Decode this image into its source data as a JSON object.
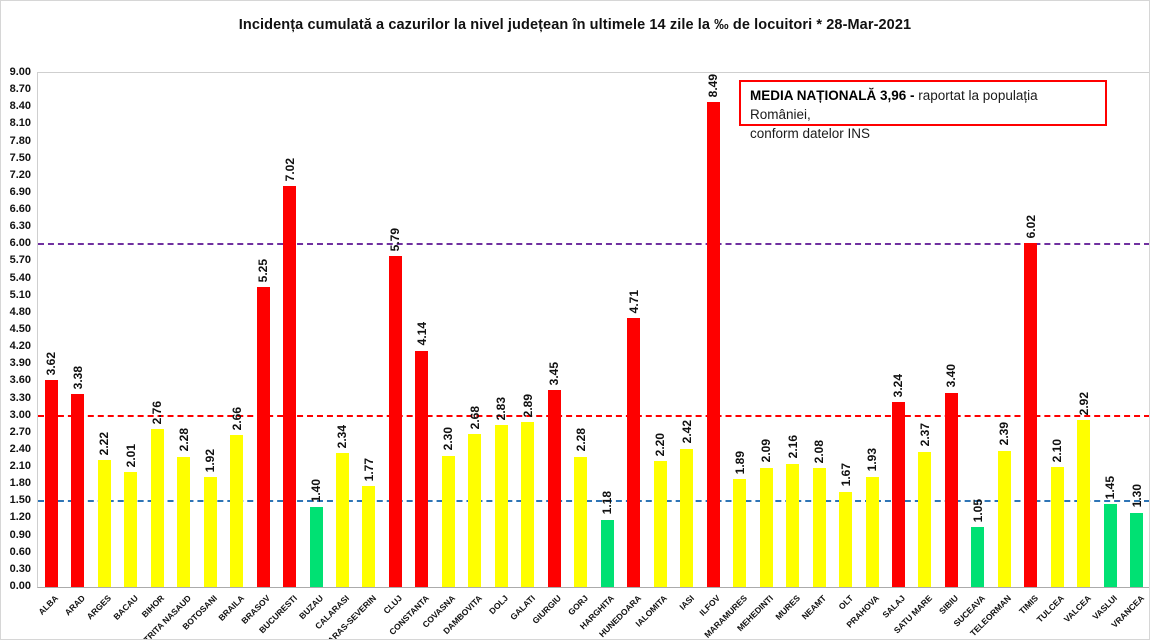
{
  "title": "Incidența cumulată a cazurilor la nivel județean în ultimele 14 zile la ‰ de locuitori * 28-Mar-2021",
  "annotation": {
    "bold_text": "MEDIA NAȚIONALĂ  3,96 - ",
    "line1_rest": "raportat la populația României,",
    "line2": "conform datelor INS",
    "border_color": "#ff0000"
  },
  "chart_data": {
    "type": "bar",
    "title": "Incidența cumulată a cazurilor la nivel județean în ultimele 14 zile la ‰ de locuitori * 28-Mar-2021",
    "xlabel": "",
    "ylabel": "",
    "ylim": [
      0,
      9
    ],
    "ytick_step": 0.3,
    "grid": false,
    "legend": "none",
    "categories": [
      "ALBA",
      "ARAD",
      "ARGES",
      "BACAU",
      "BIHOR",
      "BISTRITA NASAUD",
      "BOTOSANI",
      "BRAILA",
      "BRASOV",
      "BUCURESTI",
      "BUZAU",
      "CALARASI",
      "CARAS-SEVERIN",
      "CLUJ",
      "CONSTANTA",
      "COVASNA",
      "DAMBOVITA",
      "DOLJ",
      "GALATI",
      "GIURGIU",
      "GORJ",
      "HARGHITA",
      "HUNEDOARA",
      "IALOMITA",
      "IASI",
      "ILFOV",
      "MARAMURES",
      "MEHEDINTI",
      "MURES",
      "NEAMT",
      "OLT",
      "PRAHOVA",
      "SALAJ",
      "SATU MARE",
      "SIBIU",
      "SUCEAVA",
      "TELEORMAN",
      "TIMIS",
      "TULCEA",
      "VALCEA",
      "VASLUI",
      "VRANCEA"
    ],
    "values": [
      3.62,
      3.38,
      2.22,
      2.01,
      2.76,
      2.28,
      1.92,
      2.66,
      5.25,
      7.02,
      1.4,
      2.34,
      1.77,
      5.79,
      4.14,
      2.3,
      2.68,
      2.83,
      2.89,
      3.45,
      2.28,
      1.18,
      4.71,
      2.2,
      2.42,
      8.49,
      1.89,
      2.09,
      2.16,
      2.08,
      1.67,
      1.93,
      3.24,
      2.37,
      3.4,
      1.05,
      2.39,
      6.02,
      2.1,
      2.92,
      1.45,
      1.3
    ],
    "bar_color_keys": [
      "red",
      "red",
      "yellow",
      "yellow",
      "yellow",
      "yellow",
      "yellow",
      "yellow",
      "red",
      "red",
      "green",
      "yellow",
      "yellow",
      "red",
      "red",
      "yellow",
      "yellow",
      "yellow",
      "yellow",
      "red",
      "yellow",
      "green",
      "red",
      "yellow",
      "yellow",
      "red",
      "yellow",
      "yellow",
      "yellow",
      "yellow",
      "yellow",
      "yellow",
      "red",
      "yellow",
      "red",
      "green",
      "yellow",
      "red",
      "yellow",
      "yellow",
      "green",
      "green"
    ],
    "colors": {
      "red": "#fe0000",
      "yellow": "#ffff00",
      "green": "#00e173"
    },
    "reference_lines": [
      {
        "value": 1.5,
        "color": "#2e75b6",
        "style": "dashed"
      },
      {
        "value": 3.0,
        "color": "#fe0000",
        "style": "dashed"
      },
      {
        "value": 6.0,
        "color": "#7030a0",
        "style": "dashed"
      }
    ]
  }
}
